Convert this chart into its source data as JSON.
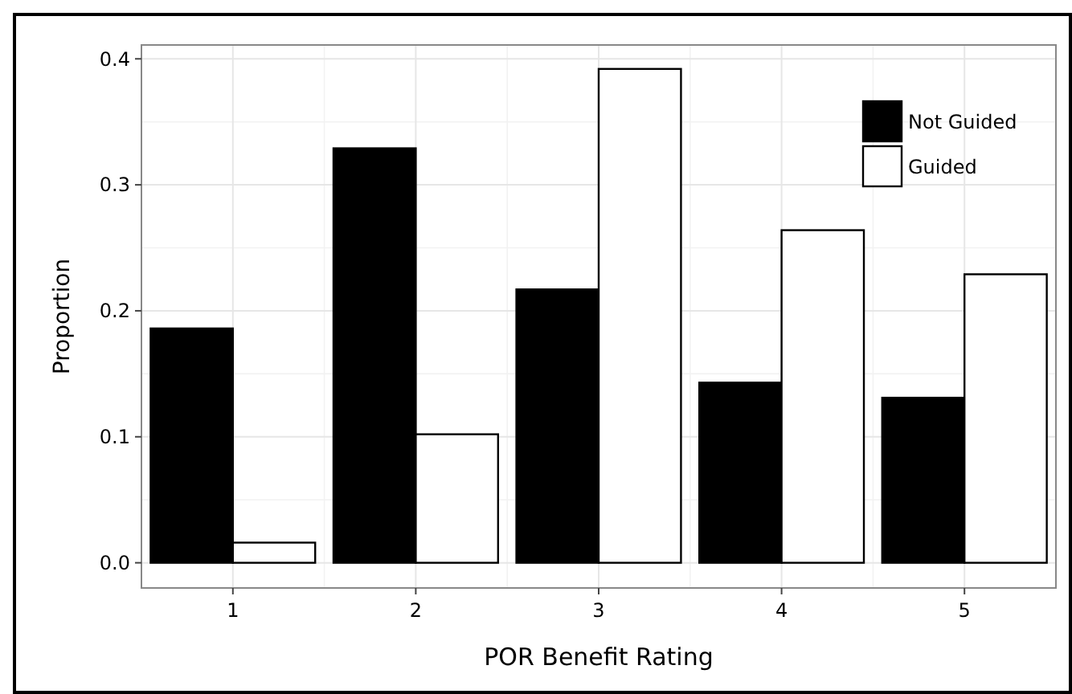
{
  "chart_data": {
    "type": "bar",
    "xlabel": "POR Benefit Rating",
    "ylabel": "Proportion",
    "categories": [
      "1",
      "2",
      "3",
      "4",
      "5"
    ],
    "series": [
      {
        "name": "Not Guided",
        "color": "#000000",
        "values": [
          0.186,
          0.329,
          0.217,
          0.143,
          0.131
        ]
      },
      {
        "name": "Guided",
        "color": "#ffffff",
        "values": [
          0.016,
          0.102,
          0.392,
          0.264,
          0.229
        ]
      }
    ],
    "ylim": [
      -0.02,
      0.411
    ],
    "yticks": [
      {
        "value": 0,
        "label": "0.0"
      },
      0.1,
      0.2,
      0.3,
      0.4
    ],
    "grid": true,
    "legend": "top right"
  }
}
